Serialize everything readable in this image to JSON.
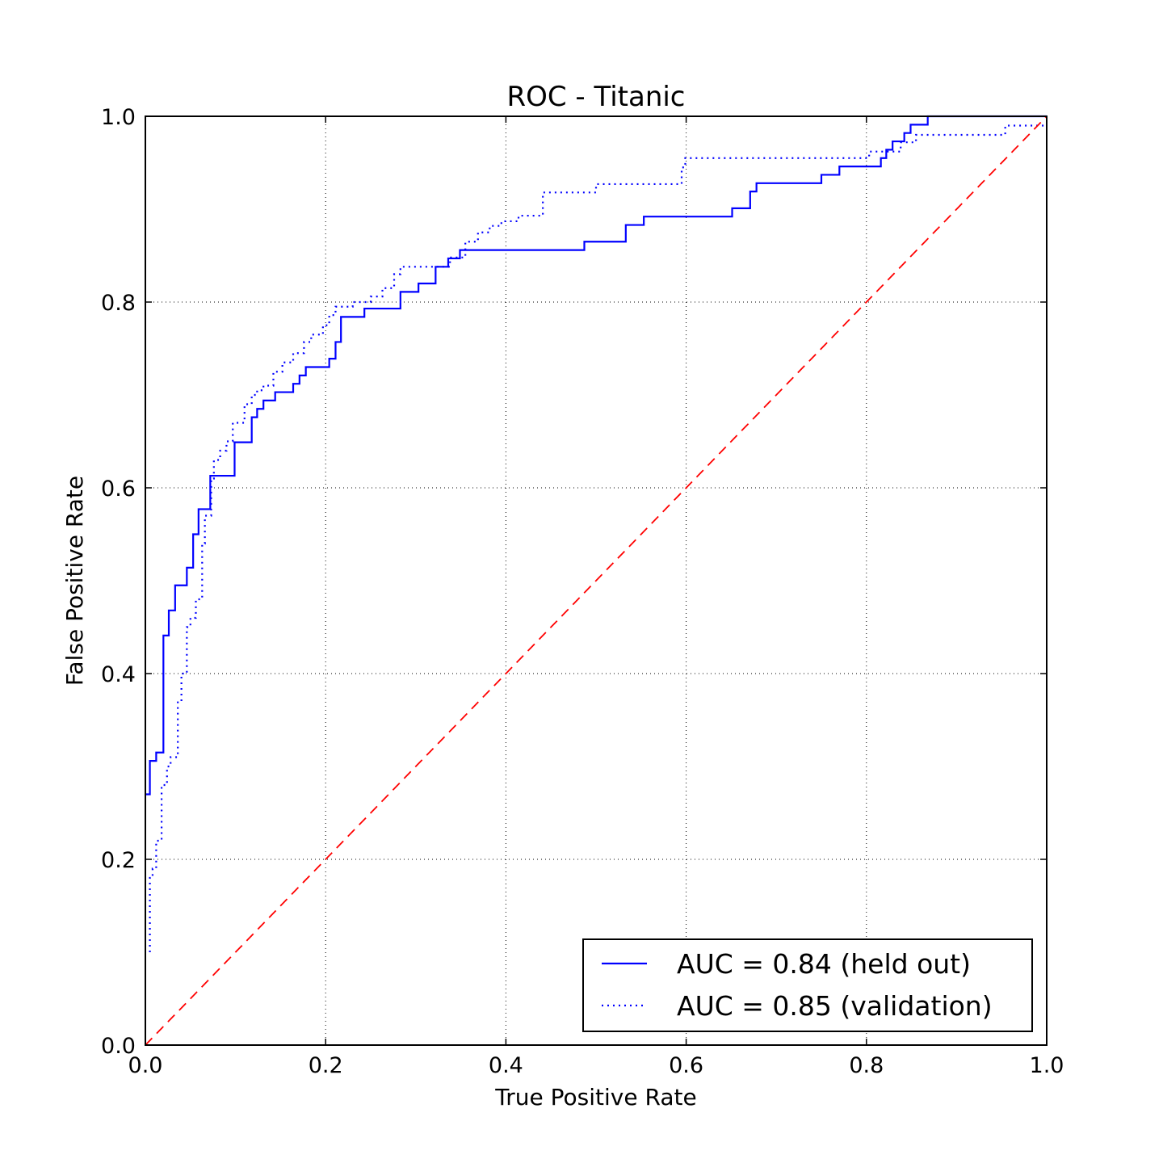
{
  "chart_data": {
    "type": "line",
    "title": "ROC - Titanic",
    "xlabel": "True Positive Rate",
    "ylabel": "False Positive Rate",
    "xlim": [
      0.0,
      1.0
    ],
    "ylim": [
      0.0,
      1.0
    ],
    "xticks": [
      "0.0",
      "0.2",
      "0.4",
      "0.6",
      "0.8",
      "1.0"
    ],
    "yticks": [
      "0.0",
      "0.2",
      "0.4",
      "0.6",
      "0.8",
      "1.0"
    ],
    "grid": true,
    "legend_position": "lower-right",
    "series": [
      {
        "name": "AUC = 0.84 (held out)",
        "style": "solid",
        "color": "#0000ff",
        "x": [
          0.0,
          0.005,
          0.005,
          0.012,
          0.012,
          0.02,
          0.02,
          0.026,
          0.026,
          0.033,
          0.033,
          0.046,
          0.046,
          0.053,
          0.053,
          0.059,
          0.059,
          0.072,
          0.072,
          0.099,
          0.099,
          0.118,
          0.118,
          0.124,
          0.124,
          0.131,
          0.131,
          0.144,
          0.144,
          0.164,
          0.164,
          0.171,
          0.171,
          0.178,
          0.178,
          0.204,
          0.204,
          0.211,
          0.211,
          0.217,
          0.217,
          0.243,
          0.243,
          0.283,
          0.283,
          0.303,
          0.303,
          0.322,
          0.322,
          0.336,
          0.336,
          0.349,
          0.349,
          0.487,
          0.487,
          0.533,
          0.533,
          0.553,
          0.553,
          0.651,
          0.651,
          0.671,
          0.671,
          0.678,
          0.678,
          0.75,
          0.75,
          0.77,
          0.77,
          0.816,
          0.816,
          0.822,
          0.822,
          0.829,
          0.829,
          0.842,
          0.842,
          0.849,
          0.849,
          0.868,
          0.868,
          1.0
        ],
        "y": [
          0.27,
          0.27,
          0.306,
          0.306,
          0.315,
          0.315,
          0.441,
          0.441,
          0.468,
          0.468,
          0.495,
          0.495,
          0.514,
          0.514,
          0.55,
          0.55,
          0.577,
          0.577,
          0.613,
          0.613,
          0.649,
          0.649,
          0.676,
          0.676,
          0.685,
          0.685,
          0.694,
          0.694,
          0.703,
          0.703,
          0.712,
          0.712,
          0.721,
          0.721,
          0.73,
          0.73,
          0.739,
          0.739,
          0.757,
          0.757,
          0.784,
          0.784,
          0.793,
          0.793,
          0.811,
          0.811,
          0.82,
          0.82,
          0.838,
          0.838,
          0.847,
          0.847,
          0.856,
          0.856,
          0.865,
          0.865,
          0.883,
          0.883,
          0.892,
          0.892,
          0.901,
          0.901,
          0.919,
          0.919,
          0.928,
          0.928,
          0.937,
          0.937,
          0.946,
          0.946,
          0.955,
          0.955,
          0.964,
          0.964,
          0.973,
          0.973,
          0.982,
          0.982,
          0.991,
          0.991,
          1.0,
          1.0
        ]
      },
      {
        "name": "AUC = 0.85 (validation)",
        "style": "dotted",
        "color": "#0000ff",
        "x": [
          0.005,
          0.005,
          0.008,
          0.008,
          0.012,
          0.012,
          0.018,
          0.018,
          0.024,
          0.024,
          0.028,
          0.028,
          0.036,
          0.036,
          0.04,
          0.04,
          0.046,
          0.046,
          0.05,
          0.05,
          0.056,
          0.056,
          0.063,
          0.063,
          0.066,
          0.066,
          0.073,
          0.073,
          0.076,
          0.076,
          0.083,
          0.083,
          0.09,
          0.09,
          0.097,
          0.097,
          0.11,
          0.11,
          0.118,
          0.118,
          0.124,
          0.124,
          0.131,
          0.131,
          0.142,
          0.142,
          0.152,
          0.152,
          0.164,
          0.164,
          0.176,
          0.176,
          0.184,
          0.184,
          0.197,
          0.197,
          0.204,
          0.204,
          0.211,
          0.211,
          0.23,
          0.23,
          0.25,
          0.25,
          0.263,
          0.263,
          0.276,
          0.276,
          0.283,
          0.283,
          0.338,
          0.338,
          0.355,
          0.355,
          0.369,
          0.369,
          0.382,
          0.382,
          0.395,
          0.395,
          0.414,
          0.414,
          0.441,
          0.441,
          0.5,
          0.5,
          0.595,
          0.595,
          0.599,
          0.599,
          0.803,
          0.803,
          0.838,
          0.838,
          0.855,
          0.855,
          0.954,
          0.954,
          1.0
        ],
        "y": [
          0.1,
          0.18,
          0.18,
          0.19,
          0.19,
          0.22,
          0.22,
          0.28,
          0.28,
          0.3,
          0.3,
          0.31,
          0.31,
          0.37,
          0.37,
          0.4,
          0.4,
          0.45,
          0.45,
          0.46,
          0.46,
          0.48,
          0.48,
          0.54,
          0.54,
          0.57,
          0.57,
          0.61,
          0.61,
          0.63,
          0.63,
          0.64,
          0.64,
          0.65,
          0.65,
          0.67,
          0.67,
          0.69,
          0.69,
          0.7,
          0.7,
          0.705,
          0.705,
          0.71,
          0.71,
          0.725,
          0.725,
          0.735,
          0.735,
          0.745,
          0.745,
          0.757,
          0.757,
          0.765,
          0.765,
          0.775,
          0.775,
          0.786,
          0.786,
          0.795,
          0.795,
          0.8,
          0.8,
          0.806,
          0.806,
          0.815,
          0.815,
          0.83,
          0.83,
          0.838,
          0.838,
          0.848,
          0.848,
          0.865,
          0.865,
          0.875,
          0.875,
          0.882,
          0.882,
          0.887,
          0.887,
          0.893,
          0.893,
          0.918,
          0.918,
          0.927,
          0.927,
          0.945,
          0.945,
          0.955,
          0.955,
          0.962,
          0.962,
          0.972,
          0.972,
          0.98,
          0.98,
          0.99,
          0.99
        ]
      },
      {
        "name": "",
        "style": "dashed",
        "color": "#ff0000",
        "x": [
          0.0,
          1.0
        ],
        "y": [
          0.0,
          1.0
        ]
      }
    ]
  }
}
